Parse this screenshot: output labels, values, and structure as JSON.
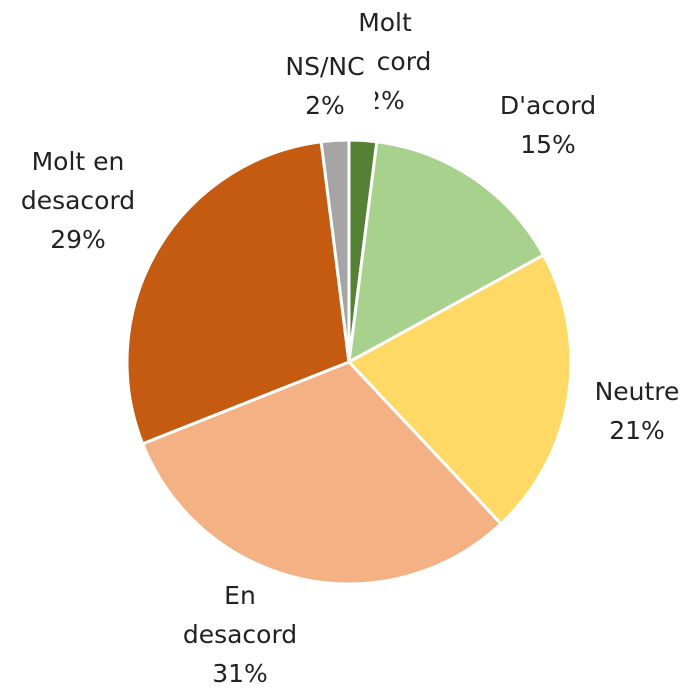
{
  "chart_data": {
    "type": "pie",
    "categories": [
      "Molt d'acord",
      "D'acord",
      "Neutre",
      "En desacord",
      "Molt en desacord",
      "NS/NC"
    ],
    "values": [
      2,
      15,
      21,
      31,
      29,
      2
    ],
    "value_labels": [
      "2%",
      "15%",
      "21%",
      "31%",
      "29%",
      "2%"
    ],
    "colors": [
      "#548235",
      "#a9d18e",
      "#ffd966",
      "#f4b183",
      "#c55a11",
      "#a5a5a5"
    ]
  }
}
